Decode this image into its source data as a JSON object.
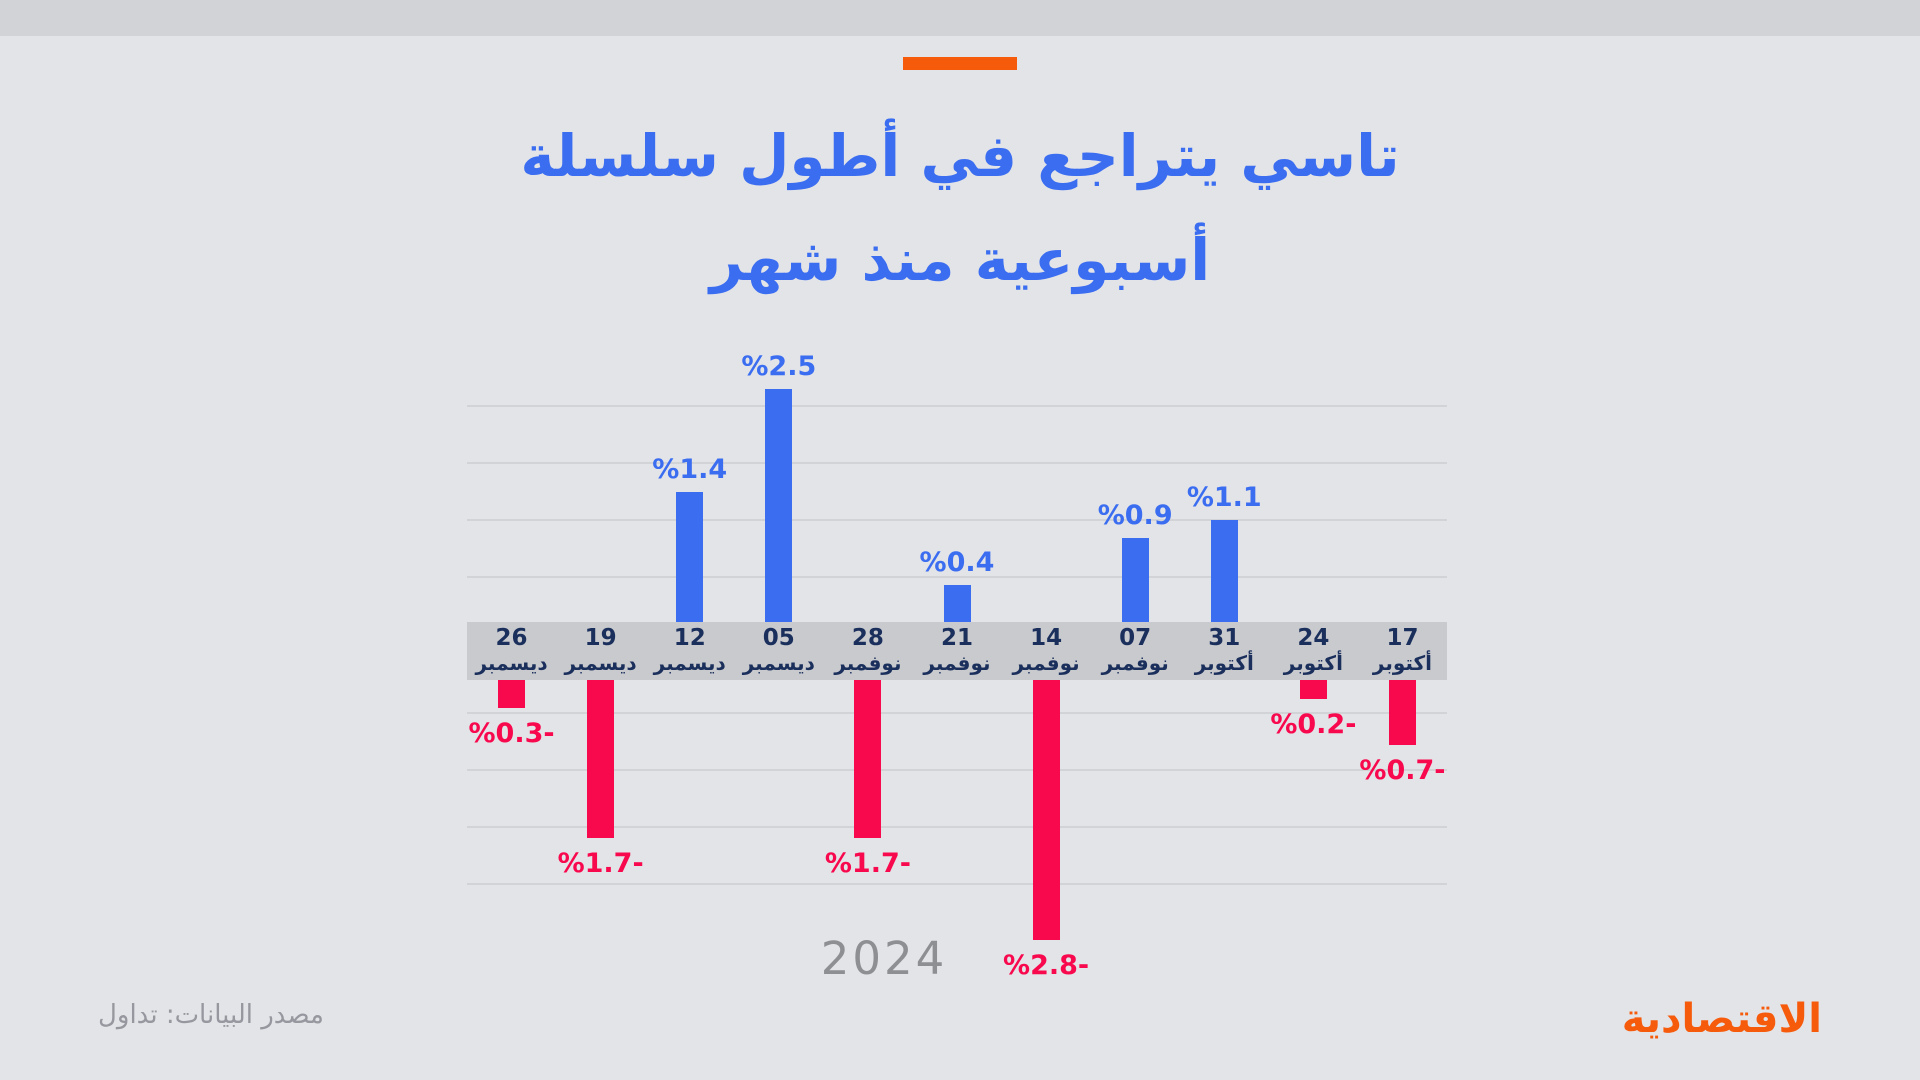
{
  "colors": {
    "background": "#E3E4E8",
    "top_strip": "#D2D3D6",
    "axis_band": "#C9CACE",
    "gridline": "#D2D3D7",
    "positive_blue": "#3B6DF1",
    "negative_red": "#F8094E",
    "date_text_navy": "#1A2F5B",
    "muted_gray": "#97989F",
    "accent_orange": "#F65B0C"
  },
  "header": {
    "title_line1": "تاسي يتراجع في أطول سلسلة",
    "title_line2": "أسبوعية منذ شهر"
  },
  "footer": {
    "year": "2024",
    "source": "مصدر البيانات: تداول",
    "brand": "الاقتصادية"
  },
  "chart_data": {
    "type": "bar",
    "title": "تاسي يتراجع في أطول سلسلة أسبوعية منذ شهر",
    "xlabel": "2024",
    "ylabel": "",
    "unit": "%",
    "axis_direction": "rtl-chronological",
    "ylim": [
      -3,
      3
    ],
    "grid": true,
    "legend": "none",
    "categories": [
      "26 ديسمبر",
      "19 ديسمبر",
      "12 ديسمبر",
      "05 ديسمبر",
      "28 نوفمبر",
      "21 نوفمبر",
      "14 نوفمبر",
      "07 نوفمبر",
      "31 أكتوبر",
      "24 أكتوبر",
      "17 أكتوبر"
    ],
    "values": [
      -0.3,
      -1.7,
      1.4,
      2.5,
      -1.7,
      0.4,
      -2.8,
      0.9,
      1.1,
      -0.2,
      -0.7
    ],
    "columns": [
      {
        "day": "26",
        "month": "ديسمبر",
        "value": -0.3,
        "label": "%0.3-"
      },
      {
        "day": "19",
        "month": "ديسمبر",
        "value": -1.7,
        "label": "%1.7-"
      },
      {
        "day": "12",
        "month": "ديسمبر",
        "value": 1.4,
        "label": "%1.4"
      },
      {
        "day": "05",
        "month": "ديسمبر",
        "value": 2.5,
        "label": "%2.5"
      },
      {
        "day": "28",
        "month": "نوفمبر",
        "value": -1.7,
        "label": "%1.7-"
      },
      {
        "day": "21",
        "month": "نوفمبر",
        "value": 0.4,
        "label": "%0.4"
      },
      {
        "day": "14",
        "month": "نوفمبر",
        "value": -2.8,
        "label": "%2.8-"
      },
      {
        "day": "07",
        "month": "نوفمبر",
        "value": 0.9,
        "label": "%0.9"
      },
      {
        "day": "31",
        "month": "أكتوبر",
        "value": 1.1,
        "label": "%1.1"
      },
      {
        "day": "24",
        "month": "أكتوبر",
        "value": -0.2,
        "label": "%0.2-"
      },
      {
        "day": "17",
        "month": "أكتوبر",
        "value": -0.7,
        "label": "%0.7-"
      }
    ]
  }
}
